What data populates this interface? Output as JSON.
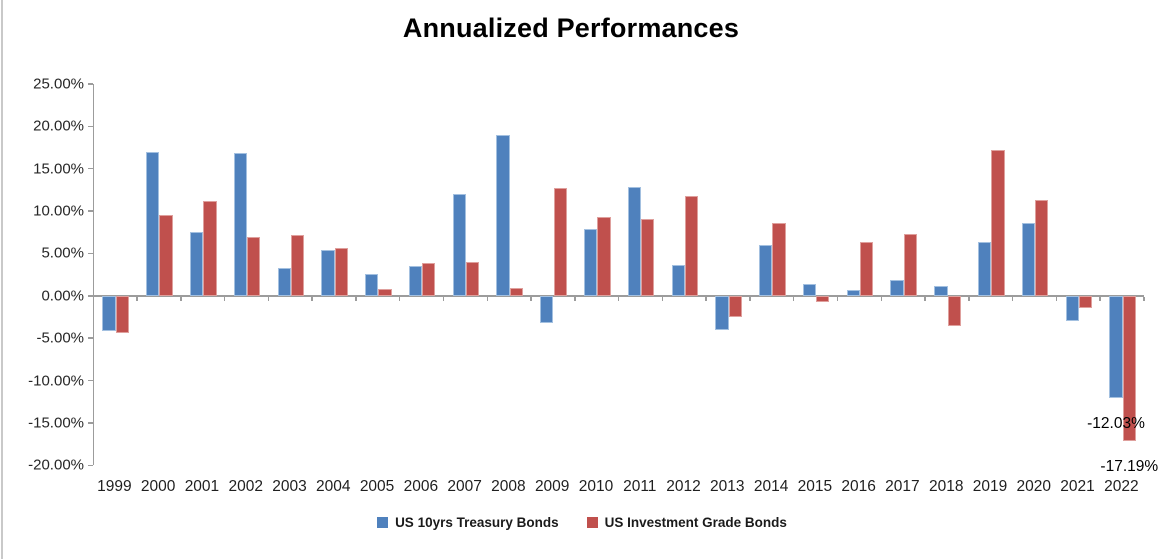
{
  "page": {
    "background": "#FFFFFF"
  },
  "chart": {
    "title": "Annualized Performances"
  },
  "chart_data": {
    "type": "bar",
    "title": "Annualized Performances",
    "categories": [
      "1999",
      "2000",
      "2001",
      "2002",
      "2003",
      "2004",
      "2005",
      "2006",
      "2007",
      "2008",
      "2009",
      "2010",
      "2011",
      "2012",
      "2013",
      "2014",
      "2015",
      "2016",
      "2017",
      "2018",
      "2019",
      "2020",
      "2021",
      "2022"
    ],
    "series": [
      {
        "name": "US 10yrs Treasury Bonds",
        "color": "#4F81BD",
        "values": [
          -4.2,
          17.0,
          7.5,
          16.9,
          3.3,
          5.4,
          2.6,
          3.5,
          12.0,
          19.0,
          -3.2,
          7.9,
          12.8,
          3.6,
          -4.0,
          6.0,
          1.4,
          0.7,
          1.9,
          1.1,
          6.3,
          8.6,
          -3.0,
          -12.03
        ]
      },
      {
        "name": "US Investment Grade Bonds",
        "color": "#C0504D",
        "values": [
          -4.4,
          9.5,
          11.2,
          6.9,
          7.2,
          5.7,
          0.8,
          3.9,
          4.0,
          0.9,
          12.7,
          9.3,
          9.1,
          11.8,
          -2.5,
          8.6,
          -0.7,
          6.3,
          7.3,
          -3.6,
          17.2,
          11.3,
          -1.4,
          -17.19
        ]
      }
    ],
    "y_ticks": [
      "25.00%",
      "20.00%",
      "15.00%",
      "10.00%",
      "5.00%",
      "0.00%",
      "-5.00%",
      "-10.00%",
      "-15.00%",
      "-20.00%"
    ],
    "ylim": [
      -20,
      25
    ],
    "grid": false,
    "legend_position": "bottom",
    "axis_color": "#9C9C9C",
    "annotations": [
      {
        "category": "2022",
        "series": 0,
        "text": "-12.03%"
      },
      {
        "category": "2022",
        "series": 1,
        "text": "-17.19%"
      }
    ]
  }
}
